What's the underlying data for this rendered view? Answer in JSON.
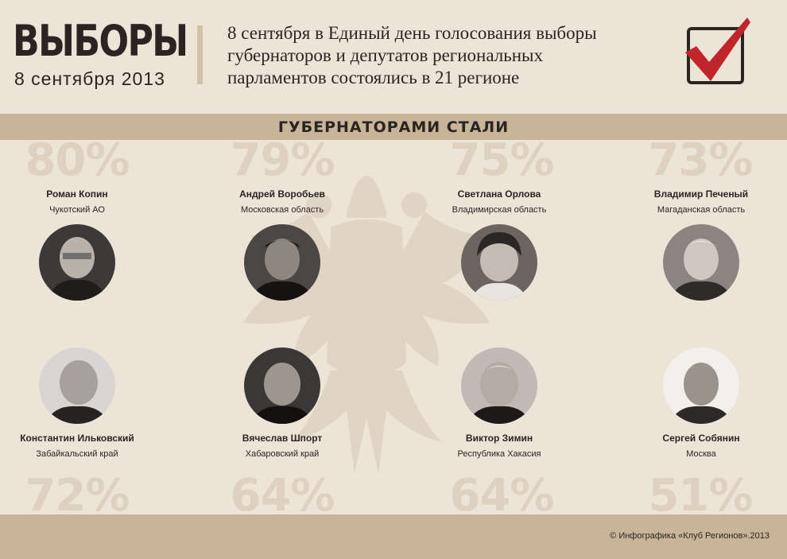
{
  "header": {
    "title": "ВЫБОРЫ",
    "date": "8 сентября 2013",
    "headline_lines": [
      "8 сентября в Единый день голосования выборы",
      "губернаторов и депутатов региональных",
      "парламентов состоялись в  21 регионе"
    ],
    "check_icon": "checkmark-icon",
    "accent_color": "#c0252b"
  },
  "section_title": "ГУБЕРНАТОРАМИ СТАЛИ",
  "governors": [
    {
      "name": "Роман Копин",
      "region": "Чукотский АО",
      "percent": "80%"
    },
    {
      "name": "Андрей Воробьев",
      "region": "Московская область",
      "percent": "79%"
    },
    {
      "name": "Светлана Орлова",
      "region": "Владимирская область",
      "percent": "75%"
    },
    {
      "name": "Владимир Печеный",
      "region": "Магаданская область",
      "percent": "73%"
    },
    {
      "name": "Константин Ильковский",
      "region": "Забайкальский край",
      "percent": "72%"
    },
    {
      "name": "Вячеслав Шпорт",
      "region": "Хабаровский край",
      "percent": "64%"
    },
    {
      "name": "Виктор Зимин",
      "region": "Республика Хакасия",
      "percent": "64%"
    },
    {
      "name": "Сергей Собянин",
      "region": "Москва",
      "percent": "51%"
    }
  ],
  "footer": {
    "credit": "© Инфографика «Клуб Регионов».2013"
  },
  "colors": {
    "background": "#ede4d8",
    "band": "#c8b499",
    "percent_text": "#dfd1bf",
    "emblem": "#e0d4c4",
    "text": "#2b2522"
  }
}
